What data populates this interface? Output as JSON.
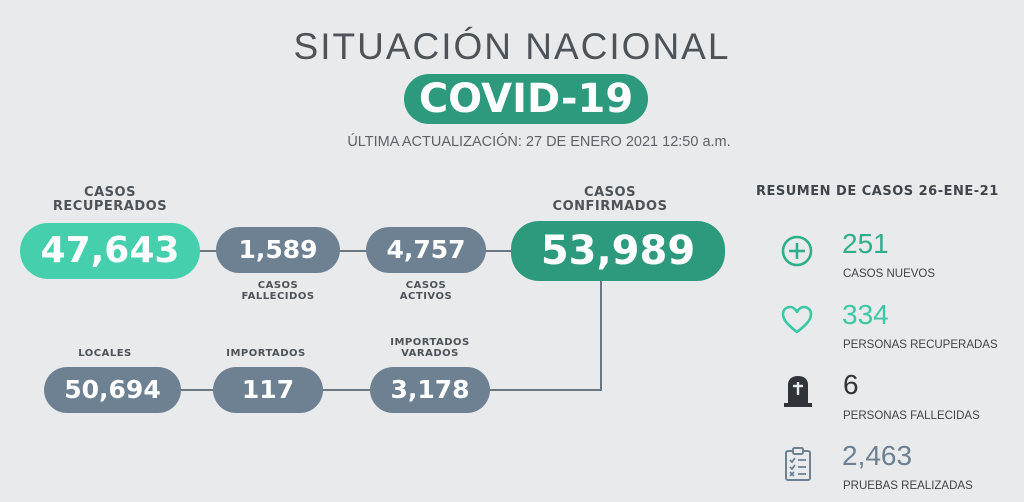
{
  "header": {
    "title": "SITUACIÓN NACIONAL",
    "badge": "COVID-19",
    "updated": "ÚLTIMA ACTUALIZACIÓN: 27 DE ENERO 2021 12:50 a.m."
  },
  "stats": {
    "recuperados": {
      "label_1": "CASOS",
      "label_2": "RECUPERADOS",
      "value": "47,643"
    },
    "fallecidos": {
      "label_1": "CASOS",
      "label_2": "FALLECIDOS",
      "value": "1,589"
    },
    "activos": {
      "label_1": "CASOS",
      "label_2": "ACTIVOS",
      "value": "4,757"
    },
    "confirmados": {
      "label_1": "CASOS",
      "label_2": "CONFIRMADOS",
      "value": "53,989"
    },
    "locales": {
      "label": "LOCALES",
      "value": "50,694"
    },
    "importados": {
      "label": "IMPORTADOS",
      "value": "117"
    },
    "varados": {
      "label_1": "IMPORTADOS",
      "label_2": "VARADOS",
      "value": "3,178"
    }
  },
  "summary": {
    "title": "RESUMEN DE CASOS 26-ENE-21",
    "items": [
      {
        "icon": "plus-circle-icon",
        "value": "251",
        "caption": "CASOS NUEVOS",
        "color": "#2fae8d"
      },
      {
        "icon": "heart-icon",
        "value": "334",
        "caption": "PERSONAS RECUPERADAS",
        "color": "#3cc7a7"
      },
      {
        "icon": "tombstone-icon",
        "value": "6",
        "caption": "PERSONAS FALLECIDAS",
        "color": "#2f3438"
      },
      {
        "icon": "clipboard-checklist-icon",
        "value": "2,463",
        "caption": "PRUEBAS REALIZADAS",
        "color": "#6d8193"
      }
    ]
  },
  "colors": {
    "background": "#e9eaeb",
    "green_dark": "#2d9a7d",
    "green_light": "#45cfad",
    "slate": "#6d8193"
  }
}
